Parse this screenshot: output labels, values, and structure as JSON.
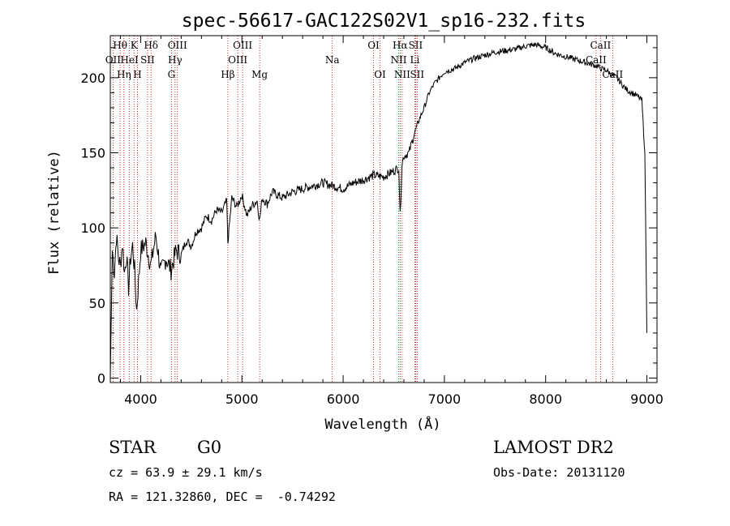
{
  "chart_data": {
    "type": "line",
    "title": "spec-56617-GAC122S02V1_sp16-232.fits",
    "xlabel": "Wavelength (Å)",
    "ylabel": "Flux (relative)",
    "xlim": [
      3700,
      9100
    ],
    "ylim": [
      -3,
      228
    ],
    "xticks": [
      4000,
      5000,
      6000,
      7000,
      8000,
      9000
    ],
    "yticks": [
      0,
      50,
      100,
      150,
      200
    ],
    "grid": false,
    "series": [
      {
        "x": [
          3700,
          3720,
          3740,
          3760,
          3780,
          3800,
          3820,
          3840,
          3860,
          3880,
          3900,
          3920,
          3940,
          3960,
          3980,
          4000,
          4050,
          4100,
          4150,
          4200,
          4250,
          4300,
          4350,
          4400,
          4450,
          4500,
          4550,
          4600,
          4650,
          4700,
          4750,
          4800,
          4850,
          4861,
          4900,
          4950,
          5000,
          5050,
          5100,
          5150,
          5175,
          5200,
          5250,
          5300,
          5400,
          5500,
          5600,
          5700,
          5800,
          5900,
          6000,
          6100,
          6200,
          6300,
          6400,
          6500,
          6550,
          6563,
          6580,
          6600,
          6650,
          6700,
          6750,
          6800,
          6850,
          6900,
          6950,
          7000,
          7100,
          7200,
          7300,
          7400,
          7500,
          7600,
          7700,
          7800,
          7900,
          8000,
          8100,
          8200,
          8300,
          8400,
          8500,
          8550,
          8600,
          8650,
          8700,
          8750,
          8800,
          8850,
          8900,
          8950,
          8980,
          9000
        ],
        "y": [
          0,
          85,
          70,
          95,
          80,
          75,
          90,
          70,
          82,
          60,
          80,
          88,
          72,
          45,
          65,
          85,
          90,
          75,
          95,
          70,
          80,
          72,
          85,
          82,
          92,
          88,
          98,
          100,
          108,
          105,
          112,
          110,
          118,
          90,
          120,
          114,
          122,
          108,
          115,
          118,
          105,
          120,
          116,
          124,
          120,
          124,
          126,
          128,
          130,
          128,
          126,
          130,
          132,
          135,
          134,
          138,
          140,
          108,
          142,
          148,
          150,
          162,
          172,
          180,
          190,
          196,
          200,
          204,
          206,
          210,
          213,
          215,
          217,
          218,
          219,
          221,
          222,
          220,
          216,
          214,
          212,
          210,
          208,
          206,
          205,
          202,
          200,
          196,
          192,
          190,
          188,
          185,
          150,
          30
        ]
      }
    ],
    "spectral_lines": [
      {
        "label": "Hθ",
        "x": 3797,
        "row": 1
      },
      {
        "label": "OII",
        "x": 3727,
        "row": 2
      },
      {
        "label": "Hη",
        "x": 3835,
        "row": 3
      },
      {
        "label": "K",
        "x": 3934,
        "row": 1
      },
      {
        "label": "HeI",
        "x": 3889,
        "row": 2
      },
      {
        "label": "H",
        "x": 3968,
        "row": 3
      },
      {
        "label": "Hδ",
        "x": 4102,
        "row": 1
      },
      {
        "label": "SII",
        "x": 4068,
        "row": 2
      },
      {
        "label": "OIII",
        "x": 4363,
        "row": 1
      },
      {
        "label": "Hγ",
        "x": 4340,
        "row": 2
      },
      {
        "label": "G",
        "x": 4304,
        "row": 3
      },
      {
        "label": "Hβ",
        "x": 4861,
        "row": 3
      },
      {
        "label": "OIII",
        "x": 5007,
        "row": 1
      },
      {
        "label": "OIII",
        "x": 4959,
        "row": 2
      },
      {
        "label": "Mg",
        "x": 5175,
        "row": 3
      },
      {
        "label": "Na",
        "x": 5893,
        "row": 2
      },
      {
        "label": "OI",
        "x": 6300,
        "row": 1
      },
      {
        "label": "OI",
        "x": 6364,
        "row": 3
      },
      {
        "label": "Hα",
        "x": 6563,
        "row": 1
      },
      {
        "label": "SII",
        "x": 6716,
        "row": 1
      },
      {
        "label": "NII",
        "x": 6548,
        "row": 2
      },
      {
        "label": "Li",
        "x": 6708,
        "row": 2
      },
      {
        "label": "NII",
        "x": 6583,
        "row": 3
      },
      {
        "label": "SII",
        "x": 6731,
        "row": 3
      },
      {
        "label": "CaII",
        "x": 8542,
        "row": 1
      },
      {
        "label": "CaII",
        "x": 8498,
        "row": 2
      },
      {
        "label": "CaII",
        "x": 8662,
        "row": 3
      }
    ]
  },
  "info": {
    "object_class": "STAR",
    "subclass": "G0",
    "survey": "LAMOST DR2",
    "cz": "cz = 63.9 ± 29.1 km/s",
    "obs_date": "Obs-Date: 20131120",
    "coords": "RA = 121.32860, DEC =  -0.74292"
  }
}
